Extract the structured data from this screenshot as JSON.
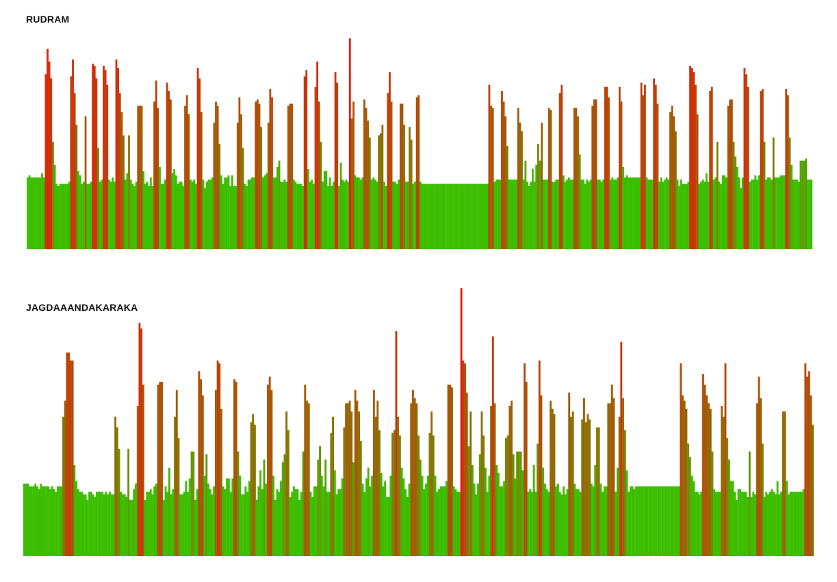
{
  "colors": {
    "low": "#3cbe00",
    "high": "#e61a0a"
  },
  "chart_data": [
    {
      "type": "bar",
      "title": "RUDRAM",
      "xlabel": "",
      "ylabel": "",
      "grid": false,
      "legend": "none",
      "ylim": [
        0,
        1
      ],
      "values": [
        0.34,
        0.35,
        0.34,
        0.34,
        0.34,
        0.34,
        0.34,
        0.34,
        0.36,
        0.34,
        0.83,
        0.95,
        0.89,
        0.81,
        0.51,
        0.4,
        0.31,
        0.3,
        0.31,
        0.31,
        0.31,
        0.31,
        0.31,
        0.32,
        0.82,
        0.9,
        0.74,
        0.59,
        0.37,
        0.35,
        0.31,
        0.32,
        0.63,
        0.31,
        0.31,
        0.32,
        0.88,
        0.87,
        0.81,
        0.48,
        0.32,
        0.33,
        0.87,
        0.85,
        0.78,
        0.33,
        0.32,
        0.34,
        0.32,
        0.9,
        0.86,
        0.74,
        0.65,
        0.54,
        0.33,
        0.36,
        0.54,
        0.33,
        0.31,
        0.3,
        0.32,
        0.68,
        0.68,
        0.68,
        0.37,
        0.31,
        0.32,
        0.3,
        0.34,
        0.3,
        0.7,
        0.8,
        0.67,
        0.39,
        0.31,
        0.31,
        0.33,
        0.79,
        0.75,
        0.71,
        0.36,
        0.38,
        0.35,
        0.31,
        0.32,
        0.32,
        0.3,
        0.68,
        0.73,
        0.64,
        0.33,
        0.32,
        0.33,
        0.31,
        0.86,
        0.81,
        0.65,
        0.33,
        0.29,
        0.32,
        0.33,
        0.33,
        0.34,
        0.6,
        0.7,
        0.68,
        0.5,
        0.35,
        0.31,
        0.34,
        0.34,
        0.35,
        0.3,
        0.35,
        0.3,
        0.3,
        0.6,
        0.72,
        0.64,
        0.48,
        0.31,
        0.3,
        0.33,
        0.33,
        0.34,
        0.34,
        0.7,
        0.71,
        0.69,
        0.58,
        0.34,
        0.35,
        0.36,
        0.6,
        0.76,
        0.72,
        0.34,
        0.34,
        0.39,
        0.42,
        0.32,
        0.32,
        0.33,
        0.32,
        0.68,
        0.69,
        0.69,
        0.33,
        0.32,
        0.31,
        0.31,
        0.31,
        0.3,
        0.82,
        0.85,
        0.38,
        0.32,
        0.33,
        0.31,
        0.77,
        0.89,
        0.7,
        0.51,
        0.32,
        0.37,
        0.37,
        0.3,
        0.34,
        0.3,
        0.32,
        0.84,
        0.79,
        0.3,
        0.41,
        0.33,
        0.32,
        0.33,
        0.32,
        1.0,
        0.62,
        0.7,
        0.35,
        0.34,
        0.34,
        0.33,
        0.34,
        0.71,
        0.67,
        0.61,
        0.53,
        0.33,
        0.34,
        0.33,
        0.32,
        0.54,
        0.55,
        0.59,
        0.32,
        0.3,
        0.74,
        0.84,
        0.7,
        0.32,
        0.32,
        0.31,
        0.33,
        0.69,
        0.69,
        0.59,
        0.32,
        0.32,
        0.58,
        0.52,
        0.31,
        0.32,
        0.72,
        0.73,
        0.32,
        0.31,
        0.31,
        0.31,
        0.31,
        0.31,
        0.31,
        0.31,
        0.31,
        0.31,
        0.31,
        0.31,
        0.31,
        0.31,
        0.31,
        0.31,
        0.31,
        0.31,
        0.31,
        0.31,
        0.31,
        0.31,
        0.31,
        0.31,
        0.31,
        0.31,
        0.31,
        0.31,
        0.31,
        0.31,
        0.31,
        0.31,
        0.31,
        0.31,
        0.31,
        0.31,
        0.31,
        0.31,
        0.78,
        0.68,
        0.67,
        0.32,
        0.33,
        0.33,
        0.33,
        0.75,
        0.7,
        0.63,
        0.49,
        0.33,
        0.33,
        0.33,
        0.33,
        0.33,
        0.67,
        0.6,
        0.56,
        0.33,
        0.42,
        0.32,
        0.3,
        0.32,
        0.38,
        0.32,
        0.4,
        0.5,
        0.42,
        0.6,
        0.33,
        0.33,
        0.33,
        0.67,
        0.66,
        0.32,
        0.32,
        0.33,
        0.33,
        0.74,
        0.78,
        0.35,
        0.32,
        0.33,
        0.34,
        0.33,
        0.33,
        0.67,
        0.67,
        0.63,
        0.45,
        0.33,
        0.33,
        0.31,
        0.33,
        0.32,
        0.33,
        0.68,
        0.71,
        0.71,
        0.33,
        0.33,
        0.32,
        0.33,
        0.77,
        0.77,
        0.72,
        0.33,
        0.34,
        0.33,
        0.33,
        0.34,
        0.77,
        0.7,
        0.39,
        0.34,
        0.35,
        0.34,
        0.34,
        0.34,
        0.34,
        0.34,
        0.34,
        0.34,
        0.79,
        0.73,
        0.78,
        0.34,
        0.33,
        0.33,
        0.33,
        0.81,
        0.78,
        0.69,
        0.32,
        0.34,
        0.32,
        0.33,
        0.34,
        0.33,
        0.65,
        0.68,
        0.63,
        0.56,
        0.33,
        0.3,
        0.33,
        0.31,
        0.31,
        0.31,
        0.32,
        0.87,
        0.86,
        0.84,
        0.78,
        0.64,
        0.31,
        0.32,
        0.33,
        0.32,
        0.36,
        0.32,
        0.75,
        0.77,
        0.33,
        0.34,
        0.51,
        0.32,
        0.31,
        0.35,
        0.35,
        0.34,
        0.68,
        0.71,
        0.71,
        0.51,
        0.44,
        0.39,
        0.34,
        0.29,
        0.34,
        0.86,
        0.83,
        0.77,
        0.32,
        0.33,
        0.33,
        0.35,
        0.33,
        0.35,
        0.75,
        0.76,
        0.51,
        0.33,
        0.34,
        0.34,
        0.33,
        0.53,
        0.34,
        0.34,
        0.34,
        0.35,
        0.35,
        0.35,
        0.76,
        0.73,
        0.53,
        0.4,
        0.33,
        0.33,
        0.33,
        0.32,
        0.42,
        0.42,
        0.42,
        0.43,
        0.33,
        0.33,
        0.33
      ]
    },
    {
      "type": "bar",
      "title": "JAGDAAANDAKARAKA",
      "xlabel": "",
      "ylabel": "",
      "grid": false,
      "legend": "none",
      "ylim": [
        0,
        1
      ],
      "values": [
        0.27,
        0.27,
        0.27,
        0.26,
        0.26,
        0.26,
        0.27,
        0.26,
        0.25,
        0.27,
        0.26,
        0.26,
        0.26,
        0.26,
        0.25,
        0.26,
        0.25,
        0.24,
        0.26,
        0.26,
        0.26,
        0.52,
        0.58,
        0.76,
        0.76,
        0.73,
        0.73,
        0.34,
        0.28,
        0.25,
        0.24,
        0.24,
        0.23,
        0.23,
        0.21,
        0.24,
        0.24,
        0.23,
        0.22,
        0.24,
        0.24,
        0.24,
        0.24,
        0.23,
        0.24,
        0.23,
        0.24,
        0.23,
        0.23,
        0.52,
        0.48,
        0.4,
        0.24,
        0.23,
        0.23,
        0.22,
        0.4,
        0.21,
        0.21,
        0.25,
        0.27,
        0.56,
        0.87,
        0.85,
        0.64,
        0.21,
        0.24,
        0.24,
        0.25,
        0.23,
        0.26,
        0.27,
        0.64,
        0.65,
        0.65,
        0.21,
        0.26,
        0.24,
        0.33,
        0.23,
        0.25,
        0.52,
        0.62,
        0.44,
        0.23,
        0.23,
        0.24,
        0.28,
        0.24,
        0.29,
        0.39,
        0.39,
        0.21,
        0.25,
        0.69,
        0.66,
        0.6,
        0.3,
        0.38,
        0.27,
        0.25,
        0.23,
        0.26,
        0.62,
        0.73,
        0.72,
        0.55,
        0.26,
        0.25,
        0.29,
        0.29,
        0.24,
        0.29,
        0.66,
        0.65,
        0.39,
        0.3,
        0.23,
        0.23,
        0.26,
        0.24,
        0.28,
        0.5,
        0.53,
        0.49,
        0.21,
        0.26,
        0.32,
        0.25,
        0.36,
        0.27,
        0.64,
        0.67,
        0.62,
        0.3,
        0.21,
        0.25,
        0.24,
        0.28,
        0.35,
        0.38,
        0.54,
        0.47,
        0.22,
        0.24,
        0.26,
        0.25,
        0.25,
        0.21,
        0.24,
        0.39,
        0.64,
        0.58,
        0.57,
        0.24,
        0.22,
        0.26,
        0.26,
        0.36,
        0.41,
        0.3,
        0.26,
        0.36,
        0.24,
        0.24,
        0.46,
        0.52,
        0.32,
        0.23,
        0.25,
        0.25,
        0.29,
        0.48,
        0.57,
        0.57,
        0.58,
        0.54,
        0.35,
        0.62,
        0.58,
        0.54,
        0.43,
        0.27,
        0.24,
        0.29,
        0.33,
        0.26,
        0.3,
        0.62,
        0.52,
        0.58,
        0.47,
        0.31,
        0.26,
        0.28,
        0.22,
        0.22,
        0.3,
        0.46,
        0.47,
        0.84,
        0.52,
        0.45,
        0.33,
        0.29,
        0.25,
        0.22,
        0.27,
        0.57,
        0.62,
        0.59,
        0.57,
        0.45,
        0.36,
        0.3,
        0.25,
        0.27,
        0.3,
        0.46,
        0.54,
        0.45,
        0.3,
        0.24,
        0.25,
        0.26,
        0.26,
        0.26,
        0.28,
        0.64,
        0.64,
        0.63,
        0.26,
        0.25,
        0.24,
        0.24,
        1.0,
        0.73,
        0.72,
        0.61,
        0.41,
        0.54,
        0.34,
        0.27,
        0.23,
        0.27,
        0.38,
        0.54,
        0.45,
        0.33,
        0.24,
        0.3,
        0.56,
        0.82,
        0.57,
        0.34,
        0.31,
        0.26,
        0.26,
        0.28,
        0.44,
        0.45,
        0.56,
        0.58,
        0.38,
        0.29,
        0.39,
        0.39,
        0.39,
        0.32,
        0.72,
        0.65,
        0.24,
        0.25,
        0.24,
        0.34,
        0.24,
        0.42,
        0.73,
        0.6,
        0.33,
        0.27,
        0.25,
        0.24,
        0.58,
        0.55,
        0.53,
        0.26,
        0.27,
        0.24,
        0.23,
        0.26,
        0.23,
        0.25,
        0.61,
        0.52,
        0.54,
        0.27,
        0.25,
        0.25,
        0.24,
        0.51,
        0.59,
        0.5,
        0.53,
        0.51,
        0.27,
        0.26,
        0.34,
        0.48,
        0.48,
        0.27,
        0.24,
        0.26,
        0.26,
        0.57,
        0.57,
        0.64,
        0.59,
        0.24,
        0.33,
        0.52,
        0.8,
        0.59,
        0.47,
        0.32,
        0.24,
        0.26,
        0.26,
        0.25,
        0.26,
        0.26,
        0.26,
        0.26,
        0.26,
        0.26,
        0.26,
        0.26,
        0.26,
        0.26,
        0.26,
        0.26,
        0.26,
        0.26,
        0.26,
        0.26,
        0.26,
        0.26,
        0.26,
        0.26,
        0.26,
        0.26,
        0.26,
        0.26,
        0.72,
        0.6,
        0.58,
        0.55,
        0.42,
        0.37,
        0.3,
        0.28,
        0.24,
        0.24,
        0.23,
        0.24,
        0.68,
        0.64,
        0.6,
        0.57,
        0.55,
        0.39,
        0.25,
        0.24,
        0.24,
        0.24,
        0.56,
        0.52,
        0.72,
        0.44,
        0.36,
        0.28,
        0.28,
        0.24,
        0.21,
        0.25,
        0.25,
        0.24,
        0.24,
        0.24,
        0.22,
        0.39,
        0.22,
        0.24,
        0.23,
        0.57,
        0.67,
        0.59,
        0.42,
        0.22,
        0.24,
        0.23,
        0.24,
        0.25,
        0.24,
        0.23,
        0.28,
        0.23,
        0.24,
        0.54,
        0.54,
        0.28,
        0.23,
        0.24,
        0.24,
        0.24,
        0.24,
        0.24,
        0.24,
        0.24,
        0.25,
        0.72,
        0.67,
        0.69,
        0.6,
        0.49
      ]
    }
  ]
}
